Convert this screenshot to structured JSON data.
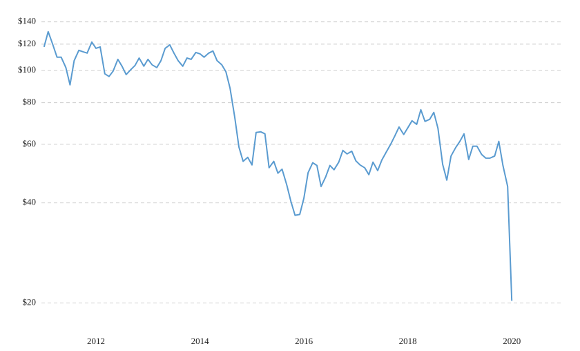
{
  "chart_data": {
    "type": "line",
    "log_scale": true,
    "grid": true,
    "x": [
      2011.0,
      2011.08,
      2011.17,
      2011.25,
      2011.33,
      2011.42,
      2011.5,
      2011.58,
      2011.67,
      2011.75,
      2011.83,
      2011.92,
      2012.0,
      2012.08,
      2012.17,
      2012.25,
      2012.33,
      2012.42,
      2012.5,
      2012.58,
      2012.67,
      2012.75,
      2012.83,
      2012.92,
      2013.0,
      2013.08,
      2013.17,
      2013.25,
      2013.33,
      2013.42,
      2013.5,
      2013.58,
      2013.67,
      2013.75,
      2013.83,
      2013.92,
      2014.0,
      2014.08,
      2014.17,
      2014.25,
      2014.33,
      2014.42,
      2014.5,
      2014.58,
      2014.67,
      2014.75,
      2014.83,
      2014.92,
      2015.0,
      2015.08,
      2015.17,
      2015.25,
      2015.33,
      2015.42,
      2015.5,
      2015.58,
      2015.67,
      2015.75,
      2015.83,
      2015.92,
      2016.0,
      2016.08,
      2016.17,
      2016.25,
      2016.33,
      2016.42,
      2016.5,
      2016.58,
      2016.67,
      2016.75,
      2016.83,
      2016.92,
      2017.0,
      2017.08,
      2017.17,
      2017.25,
      2017.33,
      2017.42,
      2017.5,
      2017.58,
      2017.67,
      2017.75,
      2017.83,
      2017.92,
      2018.0,
      2018.08,
      2018.17,
      2018.25,
      2018.33,
      2018.42,
      2018.5,
      2018.58,
      2018.67,
      2018.75,
      2018.83,
      2018.92,
      2019.0,
      2019.08,
      2019.17,
      2019.25,
      2019.33,
      2019.42,
      2019.5,
      2019.58,
      2019.67,
      2019.75,
      2019.83,
      2019.92,
      2020.0
    ],
    "series": [
      {
        "color": "#5a9bd0",
        "values": [
          117.7,
          130.8,
          119.4,
          109.6,
          109.6,
          102.0,
          90.5,
          107.0,
          115.0,
          113.8,
          112.8,
          121.7,
          116.6,
          117.7,
          97.7,
          95.9,
          99.6,
          108,
          103,
          97.2,
          100.6,
          103.5,
          109,
          103,
          108,
          104,
          102,
          107,
          116.6,
          119.4,
          112.8,
          107,
          103,
          109,
          108,
          113.3,
          112.2,
          109.6,
          112.8,
          114.4,
          107,
          104,
          99.1,
          88.4,
          72.3,
          58.9,
          53.3,
          54.8,
          52,
          65.1,
          65.4,
          64.5,
          51,
          53.3,
          49.1,
          50.5,
          45.3,
          40.4,
          36.7,
          36.9,
          41.3,
          49.3,
          52.8,
          51.8,
          44.8,
          47.9,
          51.8,
          50.3,
          53,
          57.5,
          56.1,
          57.2,
          53.5,
          52,
          51,
          48.6,
          53,
          50,
          53.8,
          56.7,
          60,
          63.6,
          67.6,
          64.2,
          67.3,
          70.6,
          68.9,
          76.2,
          70.3,
          71.3,
          74.8,
          67,
          52.2,
          46.8,
          55.3,
          58.6,
          61.2,
          64.5,
          54,
          59.2,
          59.2,
          55.9,
          54.5,
          54.5,
          55.3,
          61.2,
          51.8,
          44.8,
          20.3
        ]
      }
    ],
    "xlim": [
      2010.95,
      2020.98
    ],
    "xticks": [
      2012,
      2014,
      2016,
      2018,
      2020
    ],
    "ylim": [
      16.4,
      148
    ],
    "yticks": [
      {
        "value": 20,
        "label": "$20"
      },
      {
        "value": 40,
        "label": "$40"
      },
      {
        "value": 60,
        "label": "$60"
      },
      {
        "value": 80,
        "label": "$80"
      },
      {
        "value": 100,
        "label": "$100"
      },
      {
        "value": 120,
        "label": "$120"
      },
      {
        "value": 140,
        "label": "$140"
      }
    ]
  }
}
